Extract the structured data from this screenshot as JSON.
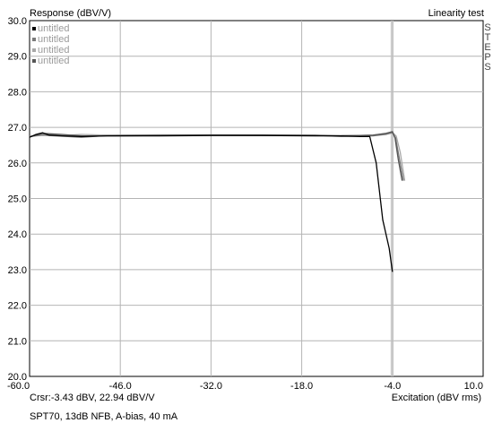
{
  "chart_data": {
    "type": "line",
    "title": "Linearity test",
    "ylabel": "Response (dBV/V)",
    "xlabel": "Excitation (dBV rms)",
    "xlim": [
      -60,
      10
    ],
    "ylim": [
      20,
      30
    ],
    "x_ticks": [
      -60,
      -46,
      -32,
      -18,
      -4,
      10
    ],
    "x_tick_labels": [
      "-60.0",
      "-46.0",
      "-32.0",
      "-18.0",
      "-4.0",
      "10.0"
    ],
    "y_ticks": [
      20,
      21,
      22,
      23,
      24,
      25,
      26,
      27,
      28,
      29,
      30
    ],
    "y_tick_labels": [
      "20.0",
      "21.0",
      "22.0",
      "23.0",
      "24.0",
      "25.0",
      "26.0",
      "27.0",
      "28.0",
      "29.0",
      "30.0"
    ],
    "grid": true,
    "legend_position": "top-left",
    "side_label": "STEPS",
    "cursor_readout": "Crsr:-3.43 dBV, 22.94 dBV/V",
    "caption": "SPT70, 13dB NFB, A-bias, 40 mA",
    "cursor_x_lines": [
      -4.2,
      -3.9
    ],
    "series": [
      {
        "name": "untitled",
        "color": "#000000",
        "points": [
          [
            -60,
            26.72
          ],
          [
            -59,
            26.8
          ],
          [
            -58,
            26.85
          ],
          [
            -57,
            26.78
          ],
          [
            -55,
            26.76
          ],
          [
            -52,
            26.74
          ],
          [
            -48,
            26.76
          ],
          [
            -40,
            26.76
          ],
          [
            -32,
            26.77
          ],
          [
            -24,
            26.77
          ],
          [
            -16,
            26.76
          ],
          [
            -12,
            26.76
          ],
          [
            -9,
            26.74
          ],
          [
            -7.5,
            26.74
          ],
          [
            -6.5,
            26.0
          ],
          [
            -5.5,
            24.4
          ],
          [
            -4.5,
            23.6
          ],
          [
            -4,
            22.94
          ]
        ]
      },
      {
        "name": "untitled",
        "color": "#7a7a7a",
        "points": [
          [
            -60,
            26.74
          ],
          [
            -58,
            26.78
          ],
          [
            -55,
            26.75
          ],
          [
            -52,
            26.72
          ],
          [
            -48,
            26.77
          ],
          [
            -40,
            26.78
          ],
          [
            -32,
            26.78
          ],
          [
            -24,
            26.77
          ],
          [
            -16,
            26.78
          ],
          [
            -12,
            26.74
          ],
          [
            -9,
            26.75
          ],
          [
            -7,
            26.76
          ],
          [
            -5,
            26.8
          ],
          [
            -4,
            26.85
          ],
          [
            -3.5,
            26.7
          ],
          [
            -3,
            26.2
          ],
          [
            -2.3,
            25.5
          ]
        ]
      },
      {
        "name": "untitled",
        "color": "#a8a8a8",
        "points": [
          [
            -60,
            26.75
          ],
          [
            -58,
            26.8
          ],
          [
            -55,
            26.77
          ],
          [
            -52,
            26.8
          ],
          [
            -48,
            26.78
          ],
          [
            -40,
            26.79
          ],
          [
            -32,
            26.79
          ],
          [
            -24,
            26.79
          ],
          [
            -16,
            26.78
          ],
          [
            -12,
            26.77
          ],
          [
            -9,
            26.77
          ],
          [
            -7,
            26.78
          ],
          [
            -5,
            26.82
          ],
          [
            -4,
            26.86
          ],
          [
            -3.4,
            26.75
          ],
          [
            -2.8,
            26.3
          ],
          [
            -2.1,
            25.5
          ]
        ]
      },
      {
        "name": "untitled",
        "color": "#555555",
        "points": [
          [
            -60,
            26.73
          ],
          [
            -58,
            26.83
          ],
          [
            -55,
            26.8
          ],
          [
            -52,
            26.76
          ],
          [
            -48,
            26.76
          ],
          [
            -40,
            26.77
          ],
          [
            -32,
            26.78
          ],
          [
            -24,
            26.78
          ],
          [
            -16,
            26.77
          ],
          [
            -12,
            26.76
          ],
          [
            -9,
            26.77
          ],
          [
            -7,
            26.78
          ],
          [
            -5,
            26.83
          ],
          [
            -4,
            26.88
          ],
          [
            -3.6,
            26.7
          ],
          [
            -3.1,
            26.1
          ],
          [
            -2.5,
            25.5
          ]
        ]
      }
    ]
  }
}
